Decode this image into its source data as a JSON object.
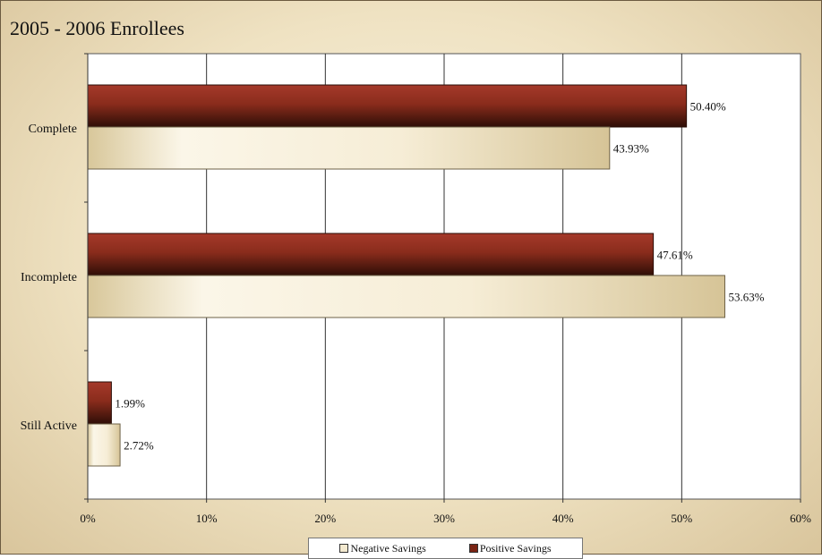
{
  "chart_data": {
    "type": "bar",
    "orientation": "horizontal",
    "title": "2005 - 2006 Enrollees",
    "categories": [
      "Complete",
      "Incomplete",
      "Still Active"
    ],
    "series": [
      {
        "name": "Positive Savings",
        "values": [
          50.4,
          47.61,
          1.99
        ],
        "labels": [
          "50.40%",
          "47.61%",
          "1.99%"
        ],
        "color": "#7a2414"
      },
      {
        "name": "Negative Savings",
        "values": [
          43.93,
          53.63,
          2.72
        ],
        "labels": [
          "43.93%",
          "53.63%",
          "2.72%"
        ],
        "color": "#f3e9cf"
      }
    ],
    "xlim": [
      0,
      60
    ],
    "xticks": [
      "0%",
      "10%",
      "20%",
      "30%",
      "40%",
      "50%",
      "60%"
    ],
    "grid": true,
    "legend_position": "bottom",
    "legend_order": [
      "Negative Savings",
      "Positive Savings"
    ]
  }
}
